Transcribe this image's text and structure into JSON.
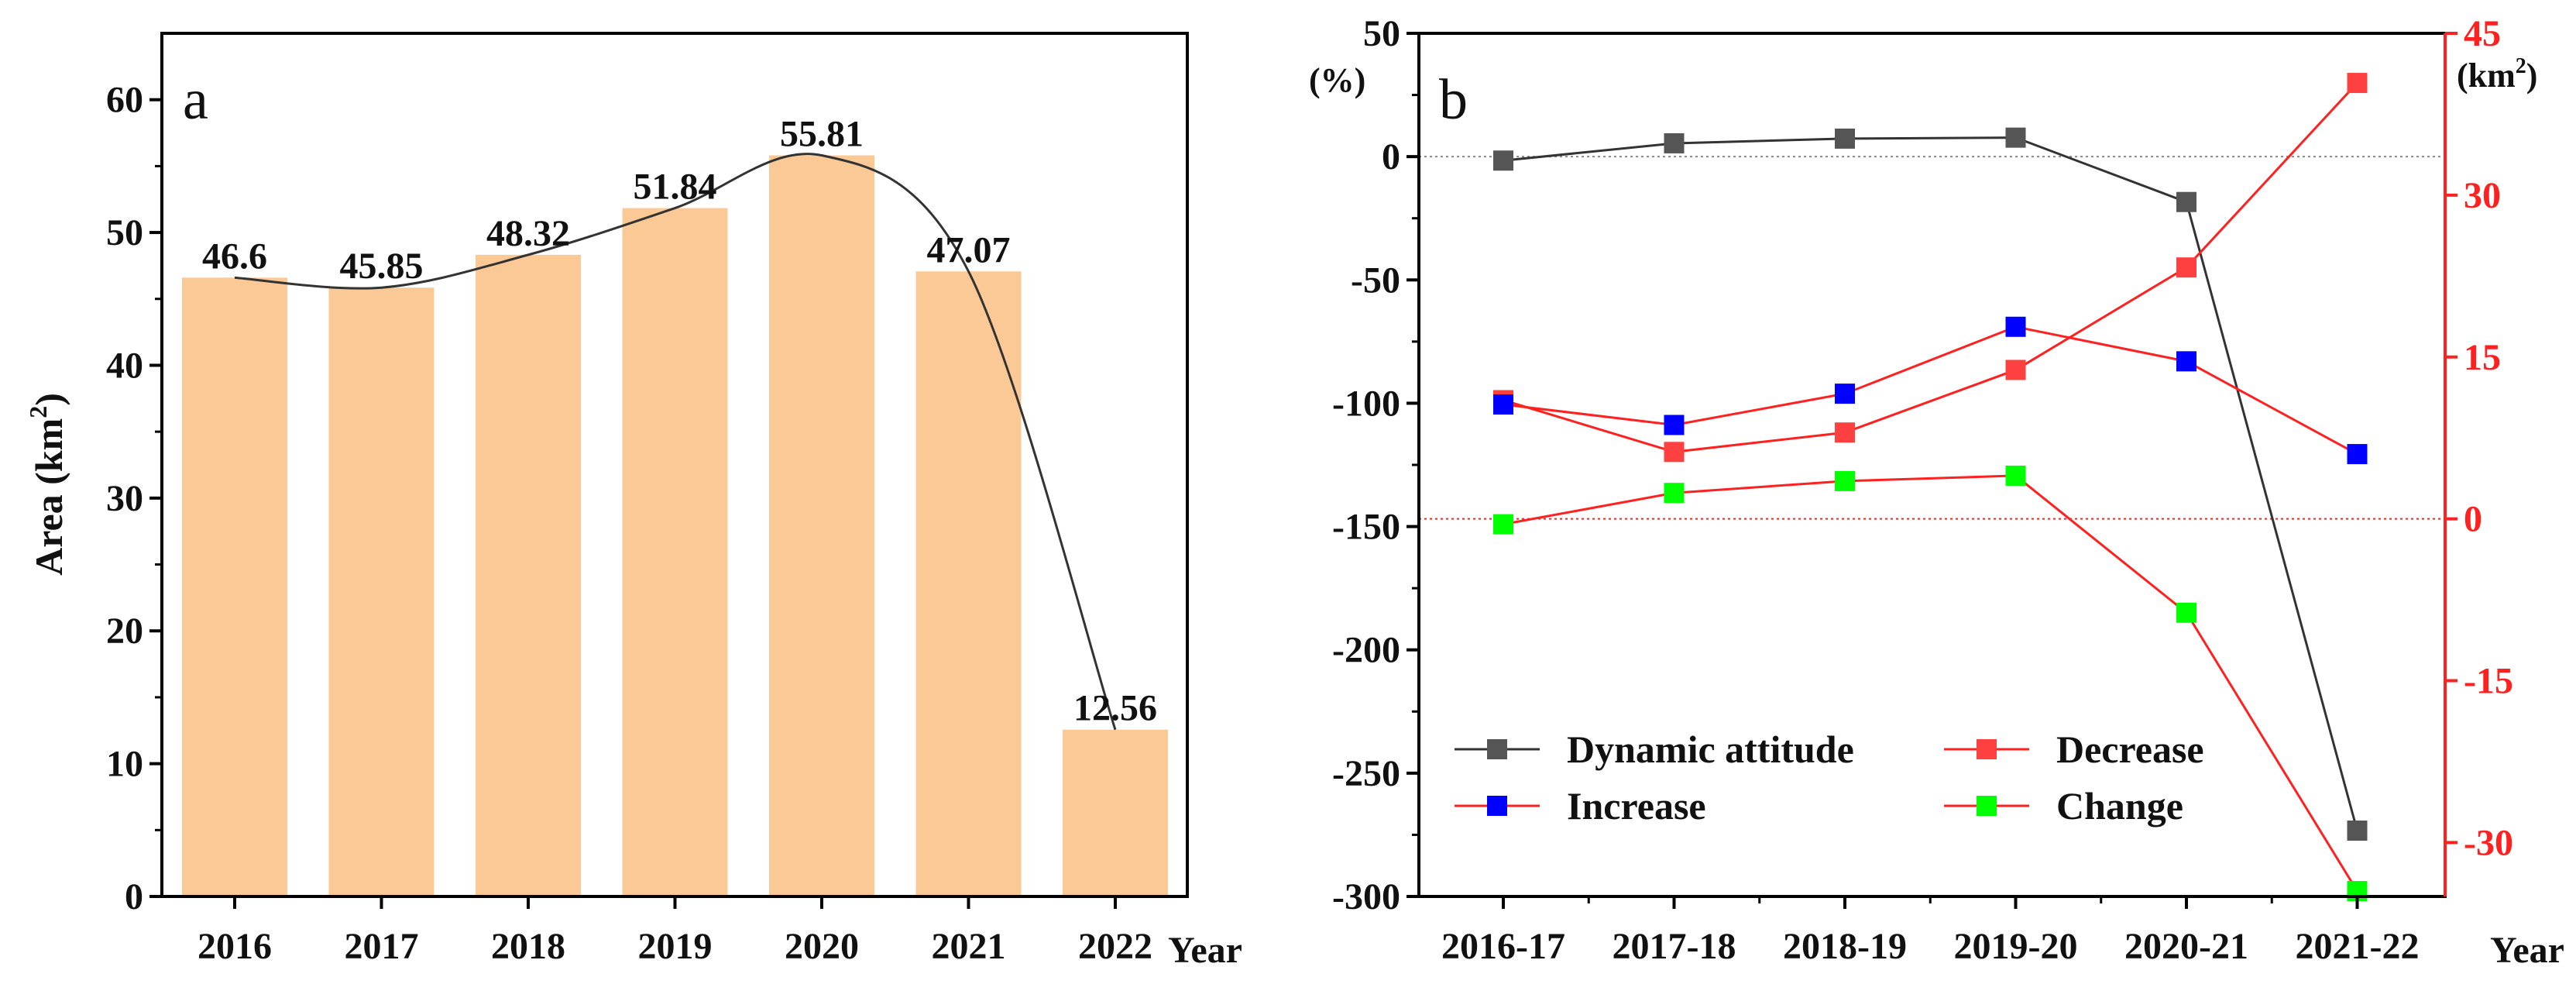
{
  "chart_data": [
    {
      "panel": "a",
      "type": "bar",
      "panel_label": "a",
      "ylabel": "Area (km²)",
      "xlabel": "Year",
      "categories": [
        "2016",
        "2017",
        "2018",
        "2019",
        "2020",
        "2021",
        "2022"
      ],
      "values": [
        46.6,
        45.85,
        48.32,
        51.84,
        55.81,
        47.07,
        12.56
      ],
      "value_labels": [
        "46.6",
        "45.85",
        "48.32",
        "51.84",
        "55.81",
        "47.07",
        "12.56"
      ],
      "ylim": [
        0,
        65
      ],
      "yticks": [
        "0",
        "10",
        "20",
        "30",
        "40",
        "50",
        "60"
      ],
      "bar_color": "#fbc996",
      "trend_line_color": "#333333",
      "grid": false
    },
    {
      "panel": "b",
      "type": "line",
      "panel_label": "b",
      "xlabel": "Year",
      "categories": [
        "2016-17",
        "2017-18",
        "2018-19",
        "2019-20",
        "2020-21",
        "2021-22"
      ],
      "left_axis": {
        "unit_label": "(%)",
        "ylim": [
          -300,
          50
        ],
        "yticks": [
          "50",
          "0",
          "-50",
          "-100",
          "-150",
          "-200",
          "-250",
          "-300"
        ],
        "color": "#111111"
      },
      "right_axis": {
        "unit_label": "(km²)",
        "ylim": [
          -35,
          45
        ],
        "yticks": [
          "45",
          "30",
          "15",
          "0",
          "-15",
          "-30"
        ],
        "color": "#ff2020"
      },
      "series": [
        {
          "name": "Dynamic attitude",
          "axis": "left",
          "values": [
            -1.6,
            5.4,
            7.3,
            7.7,
            -18.4,
            -273.3
          ],
          "marker_color": "#555555",
          "line_color": "#333333"
        },
        {
          "name": "Decrease",
          "axis": "right",
          "values": [
            11.0,
            6.2,
            8.0,
            13.8,
            23.3,
            40.4
          ],
          "marker_color": "#ff4040",
          "line_color": "#ff2020"
        },
        {
          "name": "Increase",
          "axis": "right",
          "values": [
            10.6,
            8.7,
            11.6,
            17.8,
            14.6,
            6.0
          ],
          "marker_color": "#0000ff",
          "line_color": "#ff2020"
        },
        {
          "name": "Change",
          "axis": "right",
          "values": [
            -0.5,
            2.4,
            3.5,
            4.0,
            -8.7,
            -34.5
          ],
          "marker_color": "#00ff00",
          "line_color": "#ff2020"
        }
      ],
      "reference_lines": [
        {
          "axis": "left",
          "value": 0,
          "color": "#888888"
        },
        {
          "axis": "right",
          "value": 0,
          "color": "#ff2020"
        }
      ],
      "legend_position": "bottom-left",
      "grid": false
    }
  ]
}
